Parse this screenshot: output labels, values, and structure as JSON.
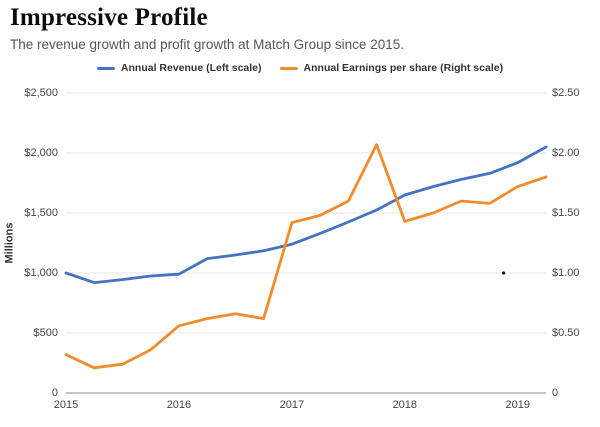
{
  "header": {
    "title": "Impressive Profile",
    "subtitle": "The revenue growth and profit growth at Match Group since 2015."
  },
  "chart_data": {
    "type": "line",
    "title": "Impressive Profile",
    "subtitle": "The revenue growth and profit growth at Match Group since 2015.",
    "x": [
      "2015 Q1",
      "2015 Q2",
      "2015 Q3",
      "2015 Q4",
      "2016 Q1",
      "2016 Q2",
      "2016 Q3",
      "2016 Q4",
      "2017 Q1",
      "2017 Q2",
      "2017 Q3",
      "2017 Q4",
      "2018 Q1",
      "2018 Q2",
      "2018 Q3",
      "2018 Q4",
      "2019 Q1",
      "2019 Q2"
    ],
    "series": [
      {
        "key": "revenue",
        "name": "Annual Revenue (Left scale)",
        "axis": "left",
        "color": "#4472c4",
        "values": [
          1000,
          920,
          945,
          975,
          990,
          1120,
          1150,
          1185,
          1240,
          1330,
          1425,
          1525,
          1650,
          1720,
          1780,
          1830,
          1920,
          2050
        ]
      },
      {
        "key": "eps",
        "name": "Annual Earnings per share (Right scale)",
        "axis": "right",
        "color": "#f28c2b",
        "values": [
          0.32,
          0.21,
          0.24,
          0.36,
          0.56,
          0.62,
          0.66,
          0.62,
          1.42,
          1.48,
          1.6,
          2.07,
          1.43,
          1.5,
          1.6,
          1.58,
          1.72,
          1.8
        ]
      }
    ],
    "left_axis": {
      "label": "Millions",
      "ticks": [
        "$2,500",
        "$2,000",
        "$1,500",
        "$1,000",
        "$500",
        "0"
      ],
      "tick_values": [
        2500,
        2000,
        1500,
        1000,
        500,
        0
      ],
      "range": [
        0,
        2500
      ]
    },
    "right_axis": {
      "ticks": [
        "$2.50",
        "$2.00",
        "$1.50",
        "$1.00",
        "$0.50",
        "0"
      ],
      "tick_values": [
        2.5,
        2.0,
        1.5,
        1.0,
        0.5,
        0
      ],
      "range": [
        0,
        2.5
      ]
    },
    "x_ticks": [
      {
        "index": 0,
        "label": "2015"
      },
      {
        "index": 4,
        "label": "2016"
      },
      {
        "index": 8,
        "label": "2017"
      },
      {
        "index": 12,
        "label": "2018"
      },
      {
        "index": 16,
        "label": "2019"
      }
    ],
    "annotations": [
      {
        "type": "dot",
        "x_index": 15.5,
        "axis": "right",
        "value": 1.0,
        "color": "#1a1a1a"
      }
    ],
    "grid": true,
    "legend_position": "top"
  }
}
